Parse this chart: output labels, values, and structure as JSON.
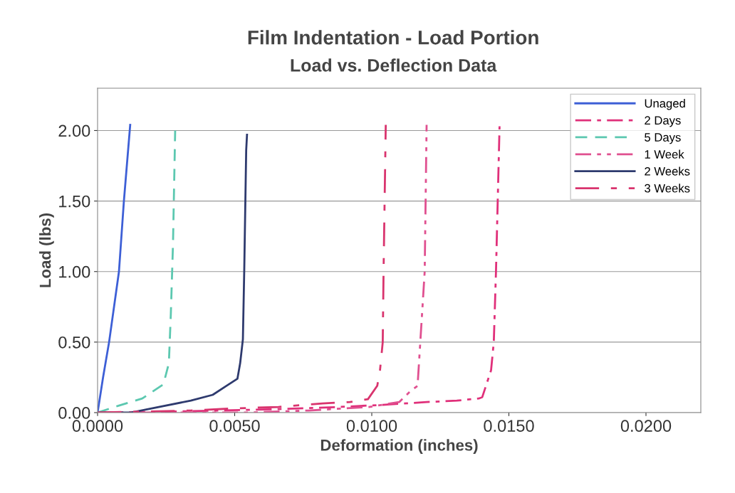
{
  "chart_data": {
    "type": "line",
    "title": "Film Indentation - Load Portion",
    "subtitle": "Load vs. Deflection Data",
    "xlabel": "Deformation (inches)",
    "ylabel": "Load (lbs)",
    "xlim": [
      0,
      0.022
    ],
    "xticks": [
      {
        "value": 0,
        "label": "0.0000"
      },
      {
        "value": 0.005,
        "label": "0.0050"
      },
      {
        "value": 0.01,
        "label": "0.0100"
      },
      {
        "value": 0.015,
        "label": "0.0150"
      },
      {
        "value": 0.02,
        "label": "0.0200"
      }
    ],
    "ylim": [
      0,
      2.3
    ],
    "yticks": [
      {
        "value": 0,
        "label": "0.00"
      },
      {
        "value": 0.5,
        "label": "0.50"
      },
      {
        "value": 1,
        "label": "1.00"
      },
      {
        "value": 1.5,
        "label": "1.50"
      },
      {
        "value": 2,
        "label": "2.00"
      }
    ],
    "grid": "y",
    "legend": "top right",
    "marker": "none",
    "series": [
      {
        "name": "Unaged",
        "color": "#3d5fd6",
        "line_style": "solid",
        "x": [
          0,
          0.0002,
          0.00042,
          0.00078,
          0.00096,
          0.00119
        ],
        "values": [
          0,
          0.25,
          0.5,
          1.0,
          1.5,
          2.04
        ]
      },
      {
        "name": "2 Days",
        "color": "#e0307a",
        "line_style": "dashdot",
        "x": [
          0,
          0.0034,
          0.0066,
          0.0088,
          0.0104,
          0.012,
          0.0131,
          0.0139,
          0.01403,
          0.01435,
          0.01445,
          0.01453,
          0.01466
        ],
        "values": [
          0,
          0.01,
          0.025,
          0.04,
          0.055,
          0.075,
          0.085,
          0.1,
          0.11,
          0.3,
          0.5,
          1.0,
          2.03
        ]
      },
      {
        "name": "5 Days",
        "color": "#5cc8b0",
        "line_style": "dashed",
        "x": [
          0,
          0.00078,
          0.00163,
          0.0024,
          0.0026,
          0.00267,
          0.00275,
          0.00283
        ],
        "values": [
          0,
          0.05,
          0.1,
          0.2,
          0.35,
          0.69,
          1.19,
          2.0
        ]
      },
      {
        "name": "1 Week",
        "color": "#e05090",
        "line_style": "dashdotdot",
        "x": [
          0,
          0.0055,
          0.0077,
          0.0099,
          0.011,
          0.0114,
          0.01167,
          0.01193,
          0.012
        ],
        "values": [
          0,
          0,
          0.015,
          0.04,
          0.075,
          0.15,
          0.19,
          1.0,
          2.04
        ]
      },
      {
        "name": "2 Weeks",
        "color": "#2e3a6e",
        "line_style": "solid",
        "x": [
          0,
          0.0012,
          0.0021,
          0.0034,
          0.0042,
          0.0047,
          0.0051,
          0.0052,
          0.0053,
          0.00535,
          0.00542,
          0.00545
        ],
        "values": [
          0,
          0,
          0.035,
          0.085,
          0.126,
          0.19,
          0.24,
          0.35,
          0.52,
          1.02,
          1.86,
          1.97
        ]
      },
      {
        "name": "3 Weeks",
        "color": "#d9346e",
        "line_style": "longdashdot",
        "x": [
          0,
          0.0034,
          0.005,
          0.0066,
          0.0082,
          0.0092,
          0.00986,
          0.0102,
          0.0103,
          0.0104,
          0.01043,
          0.01051
        ],
        "values": [
          0,
          0.015,
          0.03,
          0.04,
          0.065,
          0.075,
          0.095,
          0.19,
          0.3,
          0.5,
          1.0,
          2.04
        ]
      }
    ]
  }
}
